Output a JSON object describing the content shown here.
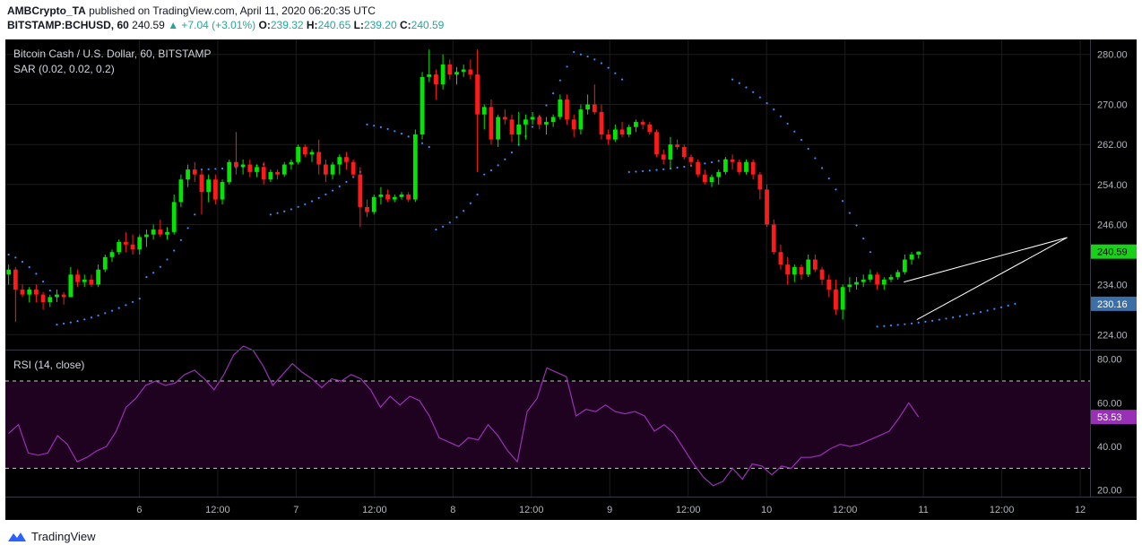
{
  "header": {
    "publisher": "AMBCrypto_TA",
    "published_text": "published on TradingView.com, April 11, 2020 06:20:35 UTC",
    "symbol": "BITSTAMP:BCHUSD, 60",
    "last": "240.59",
    "arrow": "▲",
    "change": "+7.04 (+3.01%)",
    "o_label": "O:",
    "o_value": "239.32",
    "h_label": "H:",
    "h_value": "240.65",
    "l_label": "L:",
    "l_value": "239.20",
    "c_label": "C:",
    "c_value": "240.59"
  },
  "footer": {
    "brand": "TradingView"
  },
  "colors": {
    "up": "#00e600",
    "down": "#ff1a1a",
    "sar": "#3d8bff",
    "rsi": "#9b30b8",
    "rsi_band": "#1e0220",
    "grid": "#1c1c1c",
    "price_tag_green": "#19d119",
    "price_tag_blue": "#3c6fa8",
    "rsi_tag": "#9b30b8"
  },
  "chart_data": [
    {
      "type": "candlestick",
      "title": "Bitcoin Cash / U.S. Dollar, 60, BITSTAMP",
      "indicator": "SAR (0.02, 0.02, 0.2)",
      "ylim": [
        221,
        283
      ],
      "y_ticks": [
        224,
        234,
        246,
        254,
        262,
        270,
        280
      ],
      "y_tick_labels": [
        "224.00",
        "234.00",
        "246.00",
        "254.00",
        "262.00",
        "270.00",
        "280.00"
      ],
      "x_ticks": [
        {
          "label": "6",
          "bar": 20
        },
        {
          "label": "12:00",
          "bar": 32
        },
        {
          "label": "7",
          "bar": 44
        },
        {
          "label": "12:00",
          "bar": 56
        },
        {
          "label": "8",
          "bar": 68
        },
        {
          "label": "12:00",
          "bar": 80
        },
        {
          "label": "9",
          "bar": 92
        },
        {
          "label": "12:00",
          "bar": 104
        },
        {
          "label": "10",
          "bar": 116
        },
        {
          "label": "12:00",
          "bar": 128
        },
        {
          "label": "11",
          "bar": 140
        },
        {
          "label": "12:00",
          "bar": 152
        },
        {
          "label": "12",
          "bar": 164
        }
      ],
      "total_bars": 166,
      "price_tags": [
        {
          "label": "240.59",
          "value": 240.59,
          "style": "green"
        },
        {
          "label": "230.16",
          "value": 230.16,
          "style": "blue"
        }
      ],
      "wedge": {
        "upper": [
          [
            137,
            234.5
          ],
          [
            162,
            243.4
          ]
        ],
        "lower": [
          [
            139,
            227
          ],
          [
            162,
            243.4
          ]
        ]
      },
      "sar_segments": [
        {
          "start": 0,
          "end": 6,
          "from": 240,
          "to": 232.8
        },
        {
          "start": 7,
          "end": 19,
          "from": 226,
          "to": 231.2
        },
        {
          "start": 20,
          "end": 27,
          "from": 235.5,
          "to": 248
        },
        {
          "start": 28,
          "end": 37,
          "from": 257,
          "to": 258
        },
        {
          "start": 38,
          "end": 51,
          "from": 248,
          "to": 256.5
        },
        {
          "start": 52,
          "end": 61,
          "from": 266,
          "to": 261.5
        },
        {
          "start": 62,
          "end": 68,
          "from": 245,
          "to": 252
        },
        {
          "start": 69,
          "end": 82,
          "from": 256,
          "to": 280.5
        },
        {
          "start": 83,
          "end": 89,
          "from": 280,
          "to": 275
        },
        {
          "start": 90,
          "end": 104,
          "from": 256.5,
          "to": 259
        },
        {
          "start": 105,
          "end": 125,
          "from": 275,
          "to": 240.5
        },
        {
          "start": 126,
          "end": 146,
          "from": 225.6,
          "to": 230.16
        }
      ],
      "candles": [
        {
          "o": 236,
          "h": 238,
          "l": 234,
          "c": 237
        },
        {
          "o": 237,
          "h": 237.5,
          "l": 226.5,
          "c": 233
        },
        {
          "o": 233,
          "h": 234,
          "l": 231.5,
          "c": 232
        },
        {
          "o": 232,
          "h": 233.5,
          "l": 230.5,
          "c": 233
        },
        {
          "o": 233,
          "h": 234,
          "l": 230.5,
          "c": 232
        },
        {
          "o": 232,
          "h": 232.5,
          "l": 229,
          "c": 230.5
        },
        {
          "o": 230.5,
          "h": 232,
          "l": 229.5,
          "c": 231.5
        },
        {
          "o": 231.5,
          "h": 233,
          "l": 230.5,
          "c": 232
        },
        {
          "o": 232,
          "h": 232.5,
          "l": 230,
          "c": 231.5
        },
        {
          "o": 231.5,
          "h": 237.5,
          "l": 231.5,
          "c": 236
        },
        {
          "o": 236,
          "h": 237,
          "l": 233.5,
          "c": 234.5
        },
        {
          "o": 234.5,
          "h": 236,
          "l": 233.5,
          "c": 235
        },
        {
          "o": 235,
          "h": 236,
          "l": 233.5,
          "c": 234
        },
        {
          "o": 234,
          "h": 238,
          "l": 233.5,
          "c": 237
        },
        {
          "o": 237,
          "h": 240,
          "l": 236.5,
          "c": 239.5
        },
        {
          "o": 239.5,
          "h": 241,
          "l": 238.5,
          "c": 240.5
        },
        {
          "o": 240.5,
          "h": 243,
          "l": 240,
          "c": 242.5
        },
        {
          "o": 242.5,
          "h": 244.5,
          "l": 240.5,
          "c": 242
        },
        {
          "o": 242,
          "h": 244,
          "l": 240,
          "c": 241
        },
        {
          "o": 241,
          "h": 244,
          "l": 240,
          "c": 243.5
        },
        {
          "o": 243.5,
          "h": 245,
          "l": 241.5,
          "c": 244
        },
        {
          "o": 244,
          "h": 246,
          "l": 243,
          "c": 245
        },
        {
          "o": 245,
          "h": 247,
          "l": 243.5,
          "c": 244
        },
        {
          "o": 244,
          "h": 245.5,
          "l": 243,
          "c": 244.5
        },
        {
          "o": 244.5,
          "h": 252,
          "l": 244,
          "c": 250.5
        },
        {
          "o": 250.5,
          "h": 256,
          "l": 249.5,
          "c": 255
        },
        {
          "o": 255,
          "h": 258,
          "l": 253.5,
          "c": 257
        },
        {
          "o": 257,
          "h": 258.5,
          "l": 254.5,
          "c": 256
        },
        {
          "o": 256,
          "h": 257,
          "l": 248,
          "c": 252.5
        },
        {
          "o": 252.5,
          "h": 256,
          "l": 250.5,
          "c": 255
        },
        {
          "o": 255,
          "h": 256,
          "l": 250,
          "c": 251
        },
        {
          "o": 251,
          "h": 255,
          "l": 250,
          "c": 254.5
        },
        {
          "o": 254.5,
          "h": 259,
          "l": 254,
          "c": 258.5
        },
        {
          "o": 258.5,
          "h": 264.5,
          "l": 256,
          "c": 257.5
        },
        {
          "o": 257.5,
          "h": 259,
          "l": 256,
          "c": 258
        },
        {
          "o": 258,
          "h": 259,
          "l": 255.5,
          "c": 256.5
        },
        {
          "o": 256.5,
          "h": 258,
          "l": 255.5,
          "c": 257.5
        },
        {
          "o": 257.5,
          "h": 258.5,
          "l": 254,
          "c": 255
        },
        {
          "o": 255,
          "h": 257,
          "l": 254.5,
          "c": 256.5
        },
        {
          "o": 256.5,
          "h": 257,
          "l": 255,
          "c": 256
        },
        {
          "o": 256,
          "h": 258.5,
          "l": 255.5,
          "c": 258
        },
        {
          "o": 258,
          "h": 259,
          "l": 257,
          "c": 258.5
        },
        {
          "o": 258.5,
          "h": 262,
          "l": 258,
          "c": 261.5
        },
        {
          "o": 261.5,
          "h": 262,
          "l": 259.5,
          "c": 260
        },
        {
          "o": 260,
          "h": 261,
          "l": 258.5,
          "c": 260.5
        },
        {
          "o": 260.5,
          "h": 263,
          "l": 256,
          "c": 258
        },
        {
          "o": 258,
          "h": 259,
          "l": 254.5,
          "c": 256
        },
        {
          "o": 256,
          "h": 258.5,
          "l": 255,
          "c": 258
        },
        {
          "o": 258,
          "h": 260,
          "l": 256,
          "c": 259.5
        },
        {
          "o": 259.5,
          "h": 260.5,
          "l": 257,
          "c": 258.5
        },
        {
          "o": 258.5,
          "h": 259,
          "l": 255.5,
          "c": 256
        },
        {
          "o": 256,
          "h": 257.5,
          "l": 245.5,
          "c": 249.5
        },
        {
          "o": 249.5,
          "h": 251,
          "l": 247.5,
          "c": 248.5
        },
        {
          "o": 248.5,
          "h": 252,
          "l": 248,
          "c": 251.5
        },
        {
          "o": 251.5,
          "h": 253.5,
          "l": 250,
          "c": 252
        },
        {
          "o": 252,
          "h": 253,
          "l": 250.5,
          "c": 251
        },
        {
          "o": 251,
          "h": 252,
          "l": 250.5,
          "c": 251.5
        },
        {
          "o": 251.5,
          "h": 252.5,
          "l": 251,
          "c": 252
        },
        {
          "o": 252,
          "h": 252.5,
          "l": 250.5,
          "c": 251
        },
        {
          "o": 251,
          "h": 265,
          "l": 250.5,
          "c": 264
        },
        {
          "o": 264,
          "h": 276.5,
          "l": 263,
          "c": 275.5
        },
        {
          "o": 275.5,
          "h": 281,
          "l": 274.5,
          "c": 276
        },
        {
          "o": 276,
          "h": 277,
          "l": 271,
          "c": 274
        },
        {
          "o": 274,
          "h": 280,
          "l": 273,
          "c": 278
        },
        {
          "o": 278,
          "h": 279,
          "l": 275,
          "c": 276
        },
        {
          "o": 276,
          "h": 277.5,
          "l": 274,
          "c": 276.5
        },
        {
          "o": 276.5,
          "h": 278,
          "l": 275.5,
          "c": 277
        },
        {
          "o": 277,
          "h": 279,
          "l": 275,
          "c": 276
        },
        {
          "o": 276,
          "h": 281,
          "l": 256.5,
          "c": 268
        },
        {
          "o": 268,
          "h": 270,
          "l": 265,
          "c": 269.5
        },
        {
          "o": 269.5,
          "h": 271,
          "l": 262,
          "c": 263
        },
        {
          "o": 263,
          "h": 268,
          "l": 261.5,
          "c": 267.5
        },
        {
          "o": 267.5,
          "h": 269,
          "l": 266,
          "c": 267
        },
        {
          "o": 267,
          "h": 268,
          "l": 262.5,
          "c": 264
        },
        {
          "o": 264,
          "h": 268.5,
          "l": 262,
          "c": 266
        },
        {
          "o": 266,
          "h": 268,
          "l": 263,
          "c": 267
        },
        {
          "o": 267,
          "h": 268.5,
          "l": 266,
          "c": 267.5
        },
        {
          "o": 267.5,
          "h": 268,
          "l": 265,
          "c": 266
        },
        {
          "o": 266,
          "h": 267.5,
          "l": 264,
          "c": 266.5
        },
        {
          "o": 266.5,
          "h": 268,
          "l": 265.5,
          "c": 267.5
        },
        {
          "o": 267.5,
          "h": 272,
          "l": 267,
          "c": 271
        },
        {
          "o": 271,
          "h": 272,
          "l": 266,
          "c": 267
        },
        {
          "o": 267,
          "h": 268,
          "l": 263.5,
          "c": 265
        },
        {
          "o": 265,
          "h": 270,
          "l": 264,
          "c": 269
        },
        {
          "o": 269,
          "h": 272,
          "l": 268,
          "c": 270
        },
        {
          "o": 270,
          "h": 274,
          "l": 268,
          "c": 268.5
        },
        {
          "o": 268.5,
          "h": 270,
          "l": 263,
          "c": 264
        },
        {
          "o": 264,
          "h": 265,
          "l": 262,
          "c": 263
        },
        {
          "o": 263,
          "h": 266,
          "l": 262.5,
          "c": 265
        },
        {
          "o": 265,
          "h": 266.5,
          "l": 263.5,
          "c": 264
        },
        {
          "o": 264,
          "h": 266,
          "l": 263.5,
          "c": 265.5
        },
        {
          "o": 265.5,
          "h": 267,
          "l": 264.5,
          "c": 266.5
        },
        {
          "o": 266.5,
          "h": 267,
          "l": 265,
          "c": 266
        },
        {
          "o": 266,
          "h": 266.5,
          "l": 264,
          "c": 264.5
        },
        {
          "o": 264.5,
          "h": 265,
          "l": 259.5,
          "c": 260
        },
        {
          "o": 260,
          "h": 261,
          "l": 258,
          "c": 259
        },
        {
          "o": 259,
          "h": 263.5,
          "l": 257,
          "c": 262
        },
        {
          "o": 262,
          "h": 263,
          "l": 261,
          "c": 261.5
        },
        {
          "o": 261.5,
          "h": 262,
          "l": 259,
          "c": 259.5
        },
        {
          "o": 259.5,
          "h": 260,
          "l": 257.5,
          "c": 258.5
        },
        {
          "o": 258.5,
          "h": 259,
          "l": 255.5,
          "c": 256
        },
        {
          "o": 256,
          "h": 257,
          "l": 254,
          "c": 254.5
        },
        {
          "o": 254.5,
          "h": 256,
          "l": 253.5,
          "c": 255.5
        },
        {
          "o": 255.5,
          "h": 257,
          "l": 254,
          "c": 256.5
        },
        {
          "o": 256.5,
          "h": 259.5,
          "l": 256,
          "c": 259
        },
        {
          "o": 259,
          "h": 260,
          "l": 257,
          "c": 258.5
        },
        {
          "o": 258.5,
          "h": 259,
          "l": 256,
          "c": 256.5
        },
        {
          "o": 256.5,
          "h": 259,
          "l": 256,
          "c": 258.5
        },
        {
          "o": 258.5,
          "h": 259,
          "l": 255,
          "c": 256
        },
        {
          "o": 256,
          "h": 256.5,
          "l": 251,
          "c": 253
        },
        {
          "o": 253,
          "h": 254,
          "l": 245.5,
          "c": 246
        },
        {
          "o": 246,
          "h": 247,
          "l": 240,
          "c": 240.5
        },
        {
          "o": 240.5,
          "h": 242,
          "l": 237,
          "c": 238
        },
        {
          "o": 238,
          "h": 239.5,
          "l": 234,
          "c": 236
        },
        {
          "o": 236,
          "h": 238,
          "l": 234.5,
          "c": 237.5
        },
        {
          "o": 237.5,
          "h": 238,
          "l": 235,
          "c": 236
        },
        {
          "o": 236,
          "h": 240,
          "l": 235.5,
          "c": 239
        },
        {
          "o": 239,
          "h": 240,
          "l": 236.5,
          "c": 237
        },
        {
          "o": 237,
          "h": 237.5,
          "l": 234,
          "c": 235
        },
        {
          "o": 235,
          "h": 236,
          "l": 231.5,
          "c": 233
        },
        {
          "o": 233,
          "h": 235,
          "l": 228,
          "c": 229
        },
        {
          "o": 229,
          "h": 234,
          "l": 227,
          "c": 233.5
        },
        {
          "o": 233.5,
          "h": 235.5,
          "l": 232.5,
          "c": 234
        },
        {
          "o": 234,
          "h": 235.5,
          "l": 233,
          "c": 234.5
        },
        {
          "o": 234.5,
          "h": 236,
          "l": 233.5,
          "c": 235
        },
        {
          "o": 235,
          "h": 237,
          "l": 234.5,
          "c": 236
        },
        {
          "o": 236,
          "h": 236.5,
          "l": 233,
          "c": 234
        },
        {
          "o": 234,
          "h": 235.5,
          "l": 233,
          "c": 235
        },
        {
          "o": 235,
          "h": 236,
          "l": 234.5,
          "c": 235.5
        },
        {
          "o": 235.5,
          "h": 237,
          "l": 235,
          "c": 236.5
        },
        {
          "o": 236.5,
          "h": 240,
          "l": 236,
          "c": 239
        },
        {
          "o": 239,
          "h": 240.5,
          "l": 238,
          "c": 240
        },
        {
          "o": 240,
          "h": 240.65,
          "l": 239.2,
          "c": 240.59
        }
      ],
      "candle_start_bar": 0,
      "candle_step": 1.055
    },
    {
      "type": "line",
      "title": "RSI (14, close)",
      "ylim": [
        17,
        84
      ],
      "y_ticks": [
        20,
        40,
        60,
        80
      ],
      "y_tick_labels": [
        "20.00",
        "40.00",
        "60.00",
        "80.00"
      ],
      "bands": [
        30,
        70
      ],
      "current_label": "53.53",
      "current_value": 53.53,
      "values": [
        46,
        50,
        37,
        36,
        37,
        45,
        41,
        33,
        35,
        38,
        40,
        47,
        58,
        62,
        68,
        70,
        68,
        69,
        73,
        75,
        71,
        66,
        73,
        82,
        86,
        84,
        77,
        68,
        73,
        78,
        74,
        71,
        67,
        71,
        70,
        73,
        71,
        66,
        58,
        63,
        59,
        63,
        61,
        54,
        44,
        42,
        40,
        44,
        43,
        50,
        45,
        38,
        33,
        56,
        62,
        76,
        74,
        72,
        54,
        57,
        56,
        59,
        56,
        55,
        56,
        54,
        47,
        50,
        46,
        39,
        32,
        26,
        22,
        24,
        30,
        25,
        32,
        31,
        27,
        31,
        30,
        35,
        35,
        36,
        39,
        41,
        40,
        41,
        43,
        45,
        47,
        53,
        60,
        53.53
      ]
    }
  ]
}
